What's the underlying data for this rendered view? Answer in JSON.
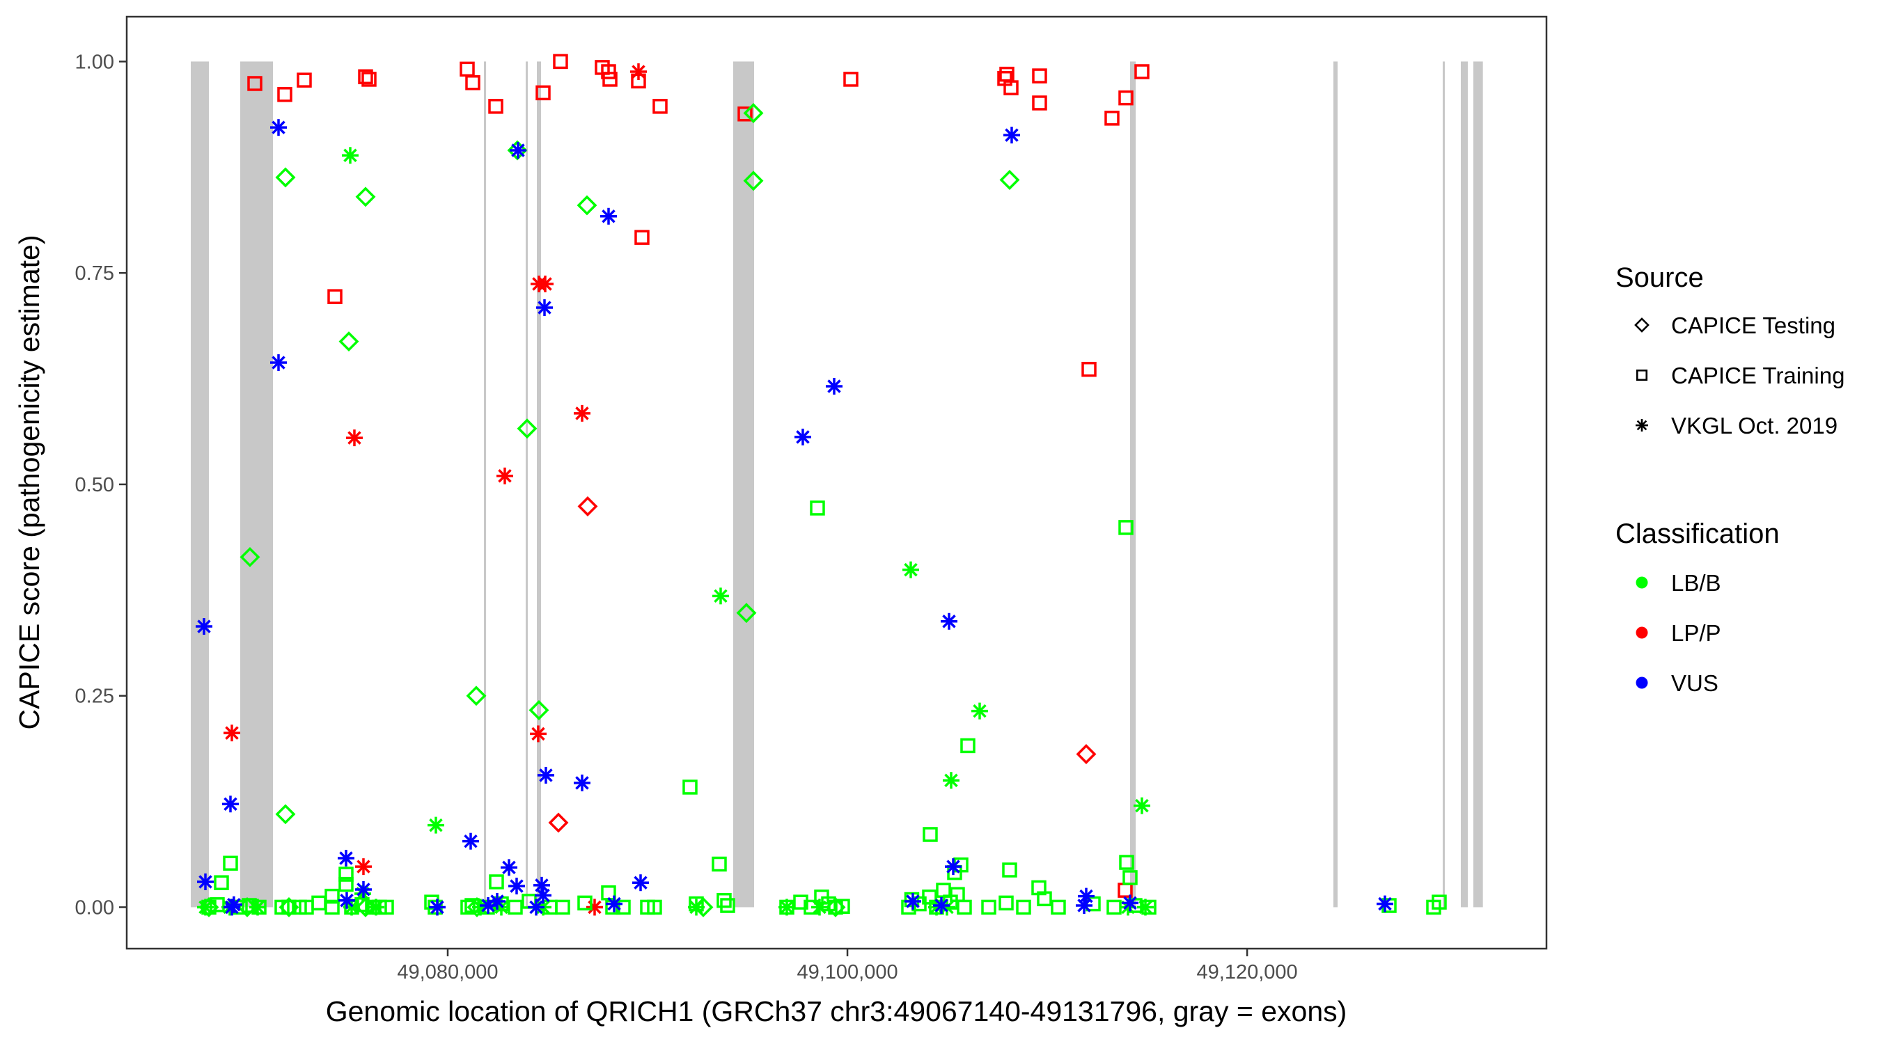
{
  "chart_data": {
    "type": "scatter",
    "title": "",
    "xlabel": "Genomic location of QRICH1 (GRCh37 chr3:49067140-49131796, gray = exons)",
    "ylabel": "CAPICE score (pathogenicity estimate)",
    "xlim": [
      49063939,
      49134978
    ],
    "ylim": [
      -0.049,
      1.053
    ],
    "grid": false,
    "x_ticks": [
      {
        "value": 49080000,
        "label": "49,080,000"
      },
      {
        "value": 49100000,
        "label": "49,100,000"
      },
      {
        "value": 49120000,
        "label": "49,120,000"
      }
    ],
    "y_ticks": [
      {
        "value": 0,
        "label": "0.00"
      },
      {
        "value": 0.25,
        "label": "0.25"
      },
      {
        "value": 0.5,
        "label": "0.50"
      },
      {
        "value": 0.75,
        "label": "0.75"
      },
      {
        "value": 1.0,
        "label": "1.00"
      }
    ],
    "exons": [
      [
        49067144,
        49068050
      ],
      [
        49069618,
        49071255
      ],
      [
        49081810,
        49081920
      ],
      [
        49083902,
        49084007
      ],
      [
        49084460,
        49084669
      ],
      [
        49094284,
        49095330
      ],
      [
        49114143,
        49114422
      ],
      [
        49124316,
        49124526
      ],
      [
        49129786,
        49129856
      ],
      [
        49130692,
        49131041
      ],
      [
        49131319,
        49131796
      ]
    ],
    "exon_y_range": [
      0,
      1
    ],
    "exon_color": "#c8c8c8",
    "legend_placement": "right",
    "legend": {
      "source_title": "Source",
      "sources": [
        {
          "label": "CAPICE Testing",
          "shape": "diamond"
        },
        {
          "label": "CAPICE Training",
          "shape": "square"
        },
        {
          "label": "VKGL Oct. 2019",
          "shape": "asterisk"
        }
      ],
      "classification_title": "Classification",
      "classifications": [
        {
          "label": "LB/B",
          "color": "#00ff00"
        },
        {
          "label": "LP/P",
          "color": "#ff0000"
        },
        {
          "label": "VUS",
          "color": "#0000ff"
        }
      ]
    },
    "series": [
      {
        "source": "CAPICE Training",
        "classification": "LP/P",
        "points": [
          [
            49070349,
            0.974
          ],
          [
            49071847,
            0.961
          ],
          [
            49072823,
            0.978
          ],
          [
            49075889,
            0.982
          ],
          [
            49076063,
            0.979
          ],
          [
            49080976,
            0.991
          ],
          [
            49081254,
            0.975
          ],
          [
            49082404,
            0.947
          ],
          [
            49084773,
            0.963
          ],
          [
            49085644,
            1.0
          ],
          [
            49087734,
            0.993
          ],
          [
            49088048,
            0.988
          ],
          [
            49088118,
            0.979
          ],
          [
            49089546,
            0.977
          ],
          [
            49090626,
            0.947
          ],
          [
            49089720,
            0.792
          ],
          [
            49074356,
            0.722
          ],
          [
            49094877,
            0.938
          ],
          [
            49100172,
            0.979
          ],
          [
            49107977,
            0.985
          ],
          [
            49107872,
            0.98
          ],
          [
            49108186,
            0.969
          ],
          [
            49109614,
            0.983
          ],
          [
            49109614,
            0.951
          ],
          [
            49112088,
            0.636
          ],
          [
            49113237,
            0.933
          ],
          [
            49113934,
            0.957
          ],
          [
            49114735,
            0.988
          ],
          [
            49113899,
            0.02
          ]
        ]
      },
      {
        "source": "VKGL Oct. 2019",
        "classification": "LP/P",
        "points": [
          [
            49089546,
            0.988
          ],
          [
            49084564,
            0.737
          ],
          [
            49084878,
            0.737
          ],
          [
            49075331,
            0.555
          ],
          [
            49086724,
            0.584
          ],
          [
            49082857,
            0.51
          ],
          [
            49069200,
            0.206
          ],
          [
            49084529,
            0.205
          ],
          [
            49075784,
            0.048
          ],
          [
            49087351,
            0.0
          ]
        ]
      },
      {
        "source": "CAPICE Testing",
        "classification": "LP/P",
        "points": [
          [
            49087003,
            0.474
          ],
          [
            49085540,
            0.1
          ],
          [
            49111948,
            0.181
          ]
        ]
      },
      {
        "source": "CAPICE Training",
        "classification": "LB/B",
        "points": [
          [
            49098500,
            0.472
          ],
          [
            49113934,
            0.449
          ],
          [
            49092124,
            0.142
          ],
          [
            49106025,
            0.191
          ],
          [
            49104144,
            0.086
          ],
          [
            49093588,
            0.051
          ],
          [
            49105678,
            0.05
          ],
          [
            49108116,
            0.044
          ],
          [
            49109579,
            0.023
          ],
          [
            49069130,
            0.052
          ],
          [
            49068677,
            0.029
          ],
          [
            49074913,
            0.039
          ],
          [
            49074913,
            0.027
          ],
          [
            49074217,
            0.013
          ],
          [
            49082439,
            0.03
          ],
          [
            49113969,
            0.053
          ],
          [
            49114143,
            0.035
          ],
          [
            49088048,
            0.017
          ],
          [
            49103220,
            0.009
          ],
          [
            49105364,
            0.041
          ],
          [
            49068050,
            0.0
          ],
          [
            49068468,
            0.003
          ],
          [
            49069618,
            0.0
          ],
          [
            49070071,
            0.002
          ],
          [
            49070558,
            0.0
          ],
          [
            49071708,
            0.0
          ],
          [
            49072056,
            0.0
          ],
          [
            49072579,
            0.0
          ],
          [
            49072927,
            0.0
          ],
          [
            49073555,
            0.005
          ],
          [
            49074217,
            0.0
          ],
          [
            49075192,
            0.0
          ],
          [
            49075715,
            0.003
          ],
          [
            49076237,
            0.0
          ],
          [
            49076586,
            0.0
          ],
          [
            49076934,
            0.0
          ],
          [
            49079199,
            0.006
          ],
          [
            49079373,
            0.0
          ],
          [
            49081010,
            0.0
          ],
          [
            49081219,
            0.002
          ],
          [
            49081986,
            0.0
          ],
          [
            49082683,
            0.004
          ],
          [
            49083379,
            0.0
          ],
          [
            49084076,
            0.007
          ],
          [
            49085121,
            0.0
          ],
          [
            49085749,
            0.0
          ],
          [
            49086863,
            0.005
          ],
          [
            49088257,
            0.0
          ],
          [
            49088780,
            0.0
          ],
          [
            49089999,
            0.0
          ],
          [
            49090347,
            0.0
          ],
          [
            49092438,
            0.004
          ],
          [
            49093831,
            0.008
          ],
          [
            49094006,
            0.002
          ],
          [
            49096967,
            0.0
          ],
          [
            49097664,
            0.006
          ],
          [
            49098186,
            0.0
          ],
          [
            49098709,
            0.012
          ],
          [
            49099057,
            0.004
          ],
          [
            49099406,
            0.0
          ],
          [
            49099754,
            0.001
          ],
          [
            49103064,
            0.0
          ],
          [
            49103587,
            0.004
          ],
          [
            49104109,
            0.012
          ],
          [
            49104458,
            0.0
          ],
          [
            49104806,
            0.02
          ],
          [
            49105154,
            0.006
          ],
          [
            49105503,
            0.015
          ],
          [
            49105851,
            0.0
          ],
          [
            49107071,
            0.0
          ],
          [
            49107942,
            0.005
          ],
          [
            49108813,
            0.0
          ],
          [
            49109858,
            0.01
          ],
          [
            49110554,
            0.0
          ],
          [
            49112297,
            0.004
          ],
          [
            49113342,
            0.0
          ],
          [
            49114387,
            0.002
          ],
          [
            49115084,
            0.0
          ],
          [
            49127104,
            0.002
          ],
          [
            49129333,
            0.0
          ],
          [
            49129612,
            0.006
          ]
        ]
      },
      {
        "source": "VKGL Oct. 2019",
        "classification": "LB/B",
        "points": [
          [
            49075122,
            0.889
          ],
          [
            49093657,
            0.368
          ],
          [
            49103169,
            0.399
          ],
          [
            49106618,
            0.232
          ],
          [
            49105189,
            0.15
          ],
          [
            49114735,
            0.12
          ],
          [
            49079408,
            0.097
          ],
          [
            49075749,
            0.016
          ],
          [
            49067876,
            0.0
          ],
          [
            49069095,
            0.0
          ],
          [
            49070489,
            0.0
          ],
          [
            49075192,
            0.0
          ],
          [
            49076412,
            0.0
          ],
          [
            49081637,
            0.0
          ],
          [
            49082683,
            0.0
          ],
          [
            49084773,
            0.0
          ],
          [
            49092438,
            0.0
          ],
          [
            49096967,
            0.0
          ],
          [
            49098605,
            0.0
          ],
          [
            49104458,
            0.0
          ],
          [
            49104980,
            0.0
          ],
          [
            49114039,
            0.0
          ],
          [
            49114910,
            0.0
          ]
        ]
      },
      {
        "source": "CAPICE Testing",
        "classification": "LB/B",
        "points": [
          [
            49071882,
            0.863
          ],
          [
            49075889,
            0.84
          ],
          [
            49086968,
            0.83
          ],
          [
            49075053,
            0.669
          ],
          [
            49083972,
            0.566
          ],
          [
            49083484,
            0.895
          ],
          [
            49095295,
            0.939
          ],
          [
            49095295,
            0.859
          ],
          [
            49108116,
            0.86
          ],
          [
            49094946,
            0.348
          ],
          [
            49070105,
            0.414
          ],
          [
            49071882,
            0.11
          ],
          [
            49081428,
            0.25
          ],
          [
            49084564,
            0.233
          ],
          [
            49068050,
            0.0
          ],
          [
            49069966,
            0.0
          ],
          [
            49072056,
            0.0
          ],
          [
            49075889,
            0.0
          ],
          [
            49081463,
            0.0
          ],
          [
            49092786,
            0.0
          ],
          [
            49099406,
            0.0
          ]
        ]
      },
      {
        "source": "VKGL Oct. 2019",
        "classification": "VUS",
        "points": [
          [
            49071534,
            0.922
          ],
          [
            49083519,
            0.895
          ],
          [
            49071534,
            0.644
          ],
          [
            49084843,
            0.709
          ],
          [
            49088048,
            0.817
          ],
          [
            49108220,
            0.913
          ],
          [
            49099336,
            0.616
          ],
          [
            49097768,
            0.556
          ],
          [
            49105085,
            0.338
          ],
          [
            49067806,
            0.332
          ],
          [
            49069130,
            0.122
          ],
          [
            49084912,
            0.156
          ],
          [
            49086724,
            0.147
          ],
          [
            49081150,
            0.078
          ],
          [
            49074913,
            0.058
          ],
          [
            49083066,
            0.047
          ],
          [
            49083449,
            0.025
          ],
          [
            49084703,
            0.026
          ],
          [
            49084773,
            0.014
          ],
          [
            49067876,
            0.03
          ],
          [
            49074948,
            0.008
          ],
          [
            49075784,
            0.021
          ],
          [
            49089651,
            0.029
          ],
          [
            49088327,
            0.004
          ],
          [
            49103273,
            0.007
          ],
          [
            49104702,
            0.002
          ],
          [
            49105294,
            0.048
          ],
          [
            49111844,
            0.002
          ],
          [
            49111948,
            0.013
          ],
          [
            49114143,
            0.005
          ],
          [
            49126895,
            0.004
          ],
          [
            49069200,
            0.0
          ],
          [
            49069300,
            0.003
          ],
          [
            49079477,
            0.0
          ],
          [
            49082474,
            0.007
          ],
          [
            49082021,
            0.002
          ],
          [
            49084425,
            0.0
          ]
        ]
      }
    ]
  }
}
